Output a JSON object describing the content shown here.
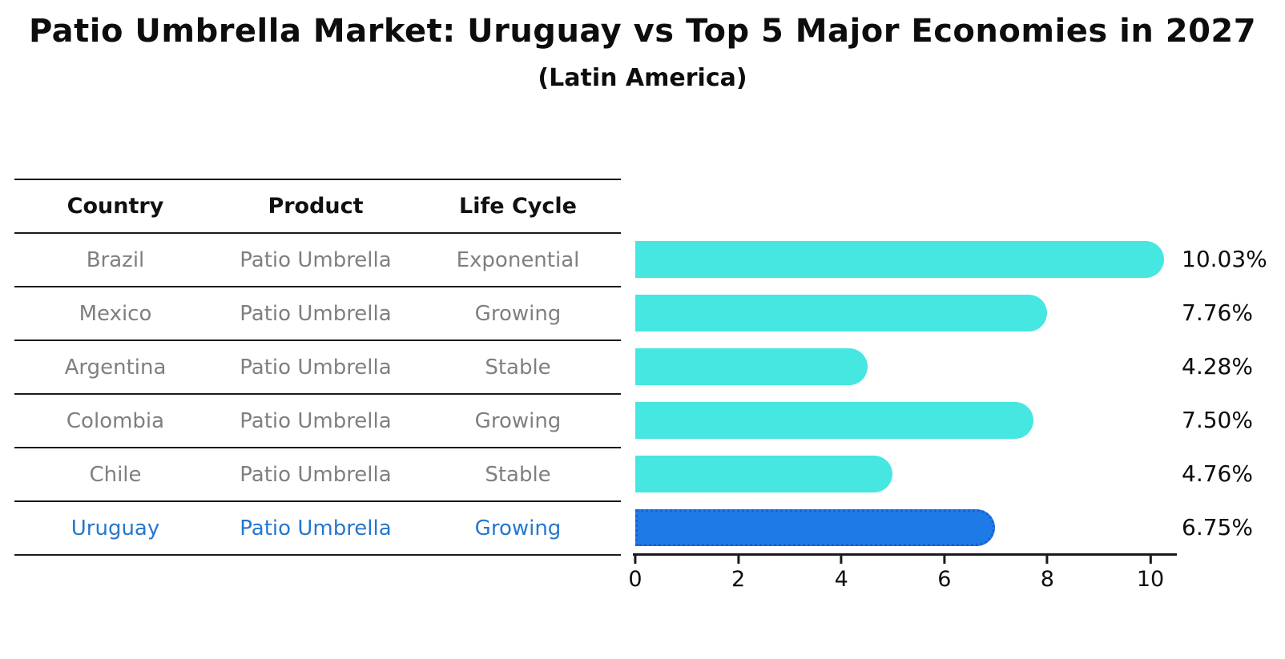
{
  "title": "Patio Umbrella Market: Uruguay vs Top 5 Major Economies in 2027",
  "subtitle": "(Latin America)",
  "table": {
    "headers": {
      "country": "Country",
      "product": "Product",
      "life_cycle": "Life Cycle"
    },
    "rows": [
      {
        "country": "Brazil",
        "product": "Patio Umbrella",
        "life_cycle": "Exponential"
      },
      {
        "country": "Mexico",
        "product": "Patio Umbrella",
        "life_cycle": "Growing"
      },
      {
        "country": "Argentina",
        "product": "Patio Umbrella",
        "life_cycle": "Stable"
      },
      {
        "country": "Colombia",
        "product": "Patio Umbrella",
        "life_cycle": "Growing"
      },
      {
        "country": "Chile",
        "product": "Patio Umbrella",
        "life_cycle": "Stable"
      },
      {
        "country": "Uruguay",
        "product": "Patio Umbrella",
        "life_cycle": "Growing"
      }
    ]
  },
  "chart_data": {
    "type": "bar",
    "orientation": "horizontal",
    "title": "Patio Umbrella Market: Uruguay vs Top 5 Major Economies in 2027",
    "subtitle": "(Latin America)",
    "categories": [
      "Brazil",
      "Mexico",
      "Argentina",
      "Colombia",
      "Chile",
      "Uruguay"
    ],
    "values": [
      10.03,
      7.76,
      4.28,
      7.5,
      4.76,
      6.75
    ],
    "value_labels": [
      "10.03%",
      "7.76%",
      "4.28%",
      "7.50%",
      "4.76%",
      "6.75%"
    ],
    "x_ticks": [
      0,
      2,
      4,
      6,
      8,
      10
    ],
    "xlim": [
      0,
      10.55
    ],
    "grid": false,
    "legend": false,
    "highlight_index": 5,
    "bar_color": "#46E6E1",
    "highlight_bar_color": "#1E7AE6",
    "highlight_border_color": "#1563D2"
  },
  "colors": {
    "bar": "#46E6E1",
    "highlight_bar": "#1E7AE6",
    "highlight_border": "#1563D2",
    "highlight_text": "#2577CE",
    "table_text": "#7f7f7f",
    "header_text": "#111111",
    "axis": "#1a1a1a"
  }
}
